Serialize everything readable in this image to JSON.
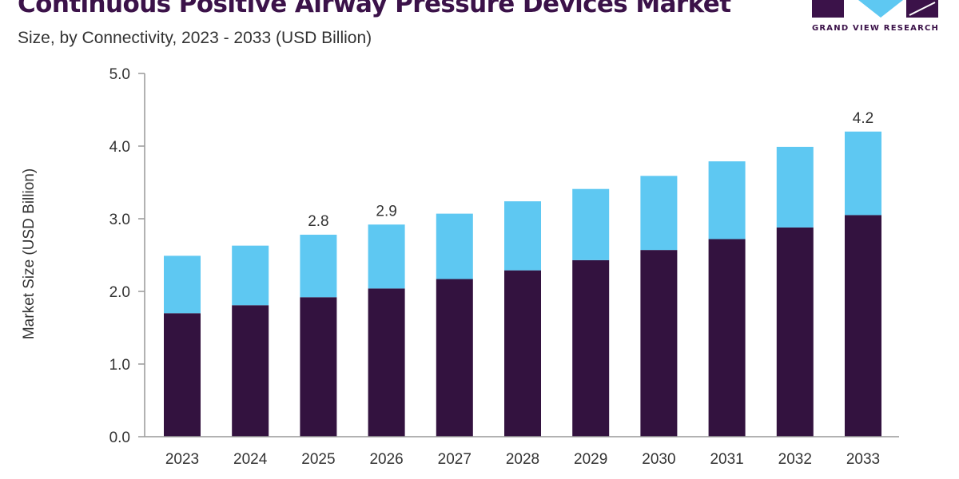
{
  "header": {
    "title": "Continuous Positive Airway Pressure Devices Market",
    "subtitle": "Size, by Connectivity, 2023 - 2033 (USD Billion)"
  },
  "branding": {
    "logo_icon": "grand-view-research-logo",
    "logo_text": "GRAND VIEW RESEARCH"
  },
  "colors": {
    "title": "#3b1249",
    "text": "#333333",
    "series_bottom": "#33123f",
    "series_top": "#5ec8f2",
    "axis": "#999999",
    "logo": "#3b1249",
    "logo_accent": "#5ec8f2"
  },
  "chart_data": {
    "type": "bar",
    "stacked": true,
    "title": "Continuous Positive Airway Pressure Devices Market",
    "subtitle": "Size, by Connectivity, 2023 - 2033 (USD Billion)",
    "xlabel": "",
    "ylabel": "Market Size (USD Billion)",
    "ylim": [
      0,
      5
    ],
    "yticks": [
      "0.0",
      "1.0",
      "2.0",
      "3.0",
      "4.0",
      "5.0"
    ],
    "grid": false,
    "legend": "none",
    "categories": [
      "2023",
      "2024",
      "2025",
      "2026",
      "2027",
      "2028",
      "2029",
      "2030",
      "2031",
      "2032",
      "2033"
    ],
    "series": [
      {
        "values": [
          1.7,
          1.81,
          1.92,
          2.04,
          2.17,
          2.29,
          2.43,
          2.57,
          2.72,
          2.88,
          3.05
        ]
      },
      {
        "values": [
          0.79,
          0.82,
          0.86,
          0.88,
          0.9,
          0.95,
          0.98,
          1.02,
          1.07,
          1.11,
          1.15
        ]
      }
    ],
    "data_labels": [
      {
        "category": "2025",
        "text": "2.8"
      },
      {
        "category": "2026",
        "text": "2.9"
      },
      {
        "category": "2033",
        "text": "4.2"
      }
    ]
  }
}
